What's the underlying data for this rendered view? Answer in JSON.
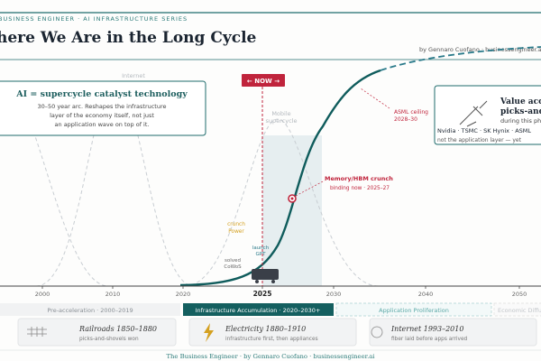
{
  "header": {
    "series": "BUSINESS ENGINEER · AI INFRASTRUCTURE SERIES",
    "title": "here We Are in the Long Cycle",
    "byline": "by Gennaro Cuofano · businessengineer.ai · Mar"
  },
  "left_box": {
    "title": "AI = supercycle catalyst technology",
    "lines": [
      "30–50 year arc. Reshapes the infrastructure",
      "layer of the economy itself, not just",
      "an application wave on top of it."
    ]
  },
  "right_box": {
    "lines": [
      "Value accru",
      "picks-and-s",
      "during this pha",
      "Nvidia · TSMC · SK Hynix · ASML",
      "not the application layer — yet"
    ]
  },
  "labels": {
    "internet": "Internet",
    "mobile": [
      "Mobile",
      "supercycle"
    ],
    "now": "← NOW →",
    "asml": [
      "ASML ceiling",
      "2028–30"
    ],
    "memory": "Memory/HBM crunch",
    "memory_sub": "binding now · 2025–27",
    "power": [
      "crunch",
      "Power"
    ],
    "launch": [
      "launch",
      "GPT"
    ],
    "cowos": [
      "solved",
      "CoWoS"
    ]
  },
  "axis": {
    "ticks": [
      "2000",
      "2010",
      "2020",
      "2025",
      "2030",
      "2040",
      "2050"
    ]
  },
  "phases": [
    "Pre-acceleration · 2000–2019",
    "Infrastructure Accumulation · 2020–2030+",
    "Application Proliferation",
    "Economic Diffusio"
  ],
  "cards": [
    {
      "title": "Railroads 1850–1880",
      "sub": "picks-and-shovels won"
    },
    {
      "title": "Electricity 1880–1910",
      "sub": "infrastructure first, then appliances"
    },
    {
      "title": "Internet 1993–2010",
      "sub": "fiber laid before apps arrived"
    }
  ],
  "footer": "The Business Engineer · by Gennaro Cuofano · businessengineer.ai"
}
